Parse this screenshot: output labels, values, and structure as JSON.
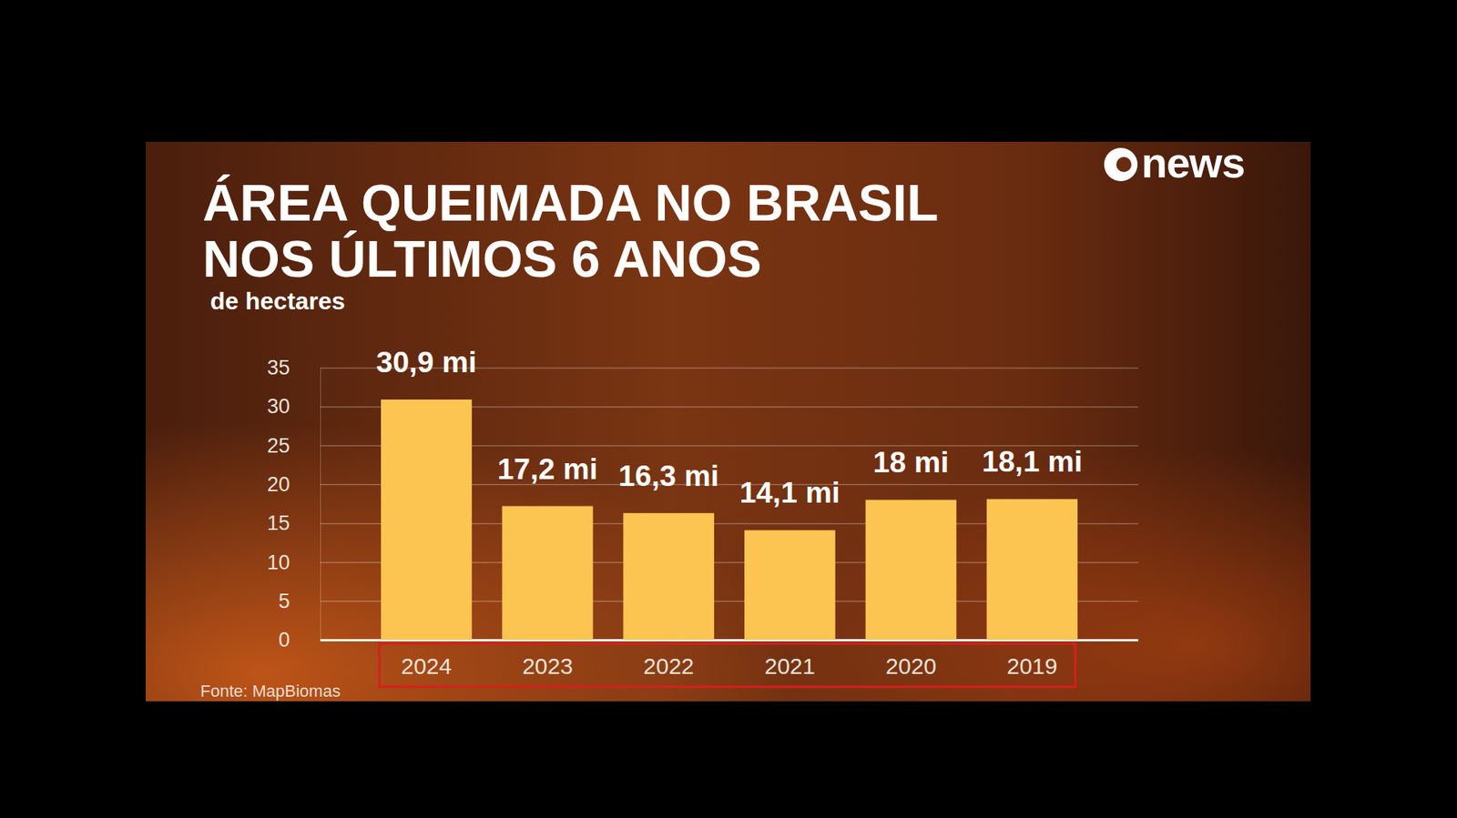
{
  "chart_data": {
    "type": "bar",
    "title": "ÁREA QUEIMADA NO BRASIL NOS ÚLTIMOS 6 ANOS",
    "subtitle": "de hectares",
    "source": "Fonte: MapBiomas",
    "logo": "news",
    "categories": [
      "2024",
      "2023",
      "2022",
      "2021",
      "2020",
      "2019"
    ],
    "values": [
      30.9,
      17.2,
      16.3,
      14.1,
      18,
      18.1
    ],
    "value_labels": [
      "30,9 mi",
      "17,2 mi",
      "16,3 mi",
      "14,1 mi",
      "18 mi",
      "18,1 mi"
    ],
    "color": "#fcc451",
    "ylim": [
      0,
      35
    ],
    "yticks": [
      0,
      5,
      10,
      15,
      20,
      25,
      30,
      35
    ],
    "grid": true,
    "data_labels": true
  }
}
